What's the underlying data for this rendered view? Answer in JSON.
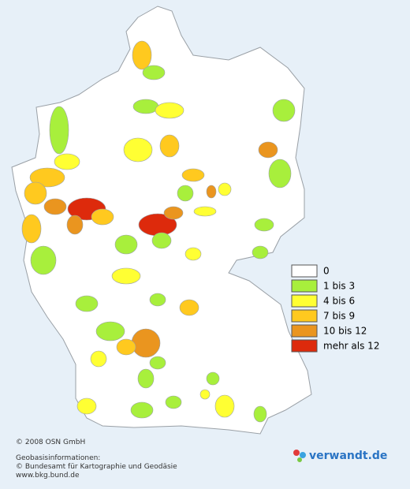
{
  "legend": [
    {
      "label": "0",
      "color": "#ffffff"
    },
    {
      "label": "1 bis 3",
      "color": "#a8ef3c"
    },
    {
      "label": "4 bis 6",
      "color": "#ffff33"
    },
    {
      "label": "7 bis 9",
      "color": "#ffc91f"
    },
    {
      "label": "10 bis 12",
      "color": "#ea951f"
    },
    {
      "label": "mehr als 12",
      "color": "#dd2a0c"
    }
  ],
  "copyright": "© 2008 OSN GmbH",
  "source": [
    "Geobasisinformationen:",
    "© Bundesamt für Kartographie und Geodäsie",
    "www.bkg.bund.de"
  ],
  "logo": "verwandt.de"
}
